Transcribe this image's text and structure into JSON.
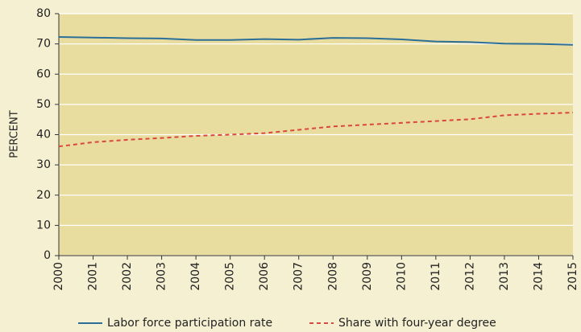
{
  "chart_data": {
    "type": "line",
    "ylabel": "PERCENT",
    "x": [
      2000,
      2001,
      2002,
      2003,
      2004,
      2005,
      2006,
      2007,
      2008,
      2009,
      2010,
      2011,
      2012,
      2013,
      2014,
      2015
    ],
    "xlim": [
      2000,
      2015
    ],
    "xticks": [
      2000,
      2001,
      2002,
      2003,
      2004,
      2005,
      2006,
      2007,
      2008,
      2009,
      2010,
      2011,
      2012,
      2013,
      2014,
      2015
    ],
    "ylim": [
      0,
      80
    ],
    "yticks": [
      0,
      10,
      20,
      30,
      40,
      50,
      60,
      70,
      80
    ],
    "grid": true,
    "legend": "bottom",
    "series": [
      {
        "name": "Labor force participation rate",
        "color": "#2b6f98",
        "dash": "solid",
        "values": [
          72.3,
          72.1,
          71.9,
          71.8,
          71.3,
          71.3,
          71.6,
          71.4,
          72.0,
          71.9,
          71.5,
          70.8,
          70.6,
          70.1,
          70.0,
          69.7
        ]
      },
      {
        "name": "Share with four-year degree",
        "color": "#d9473f",
        "dash": "dashed",
        "values": [
          36.1,
          37.5,
          38.3,
          38.9,
          39.6,
          40.0,
          40.5,
          41.6,
          42.7,
          43.3,
          43.9,
          44.5,
          45.1,
          46.4,
          46.9,
          47.3
        ]
      }
    ]
  }
}
